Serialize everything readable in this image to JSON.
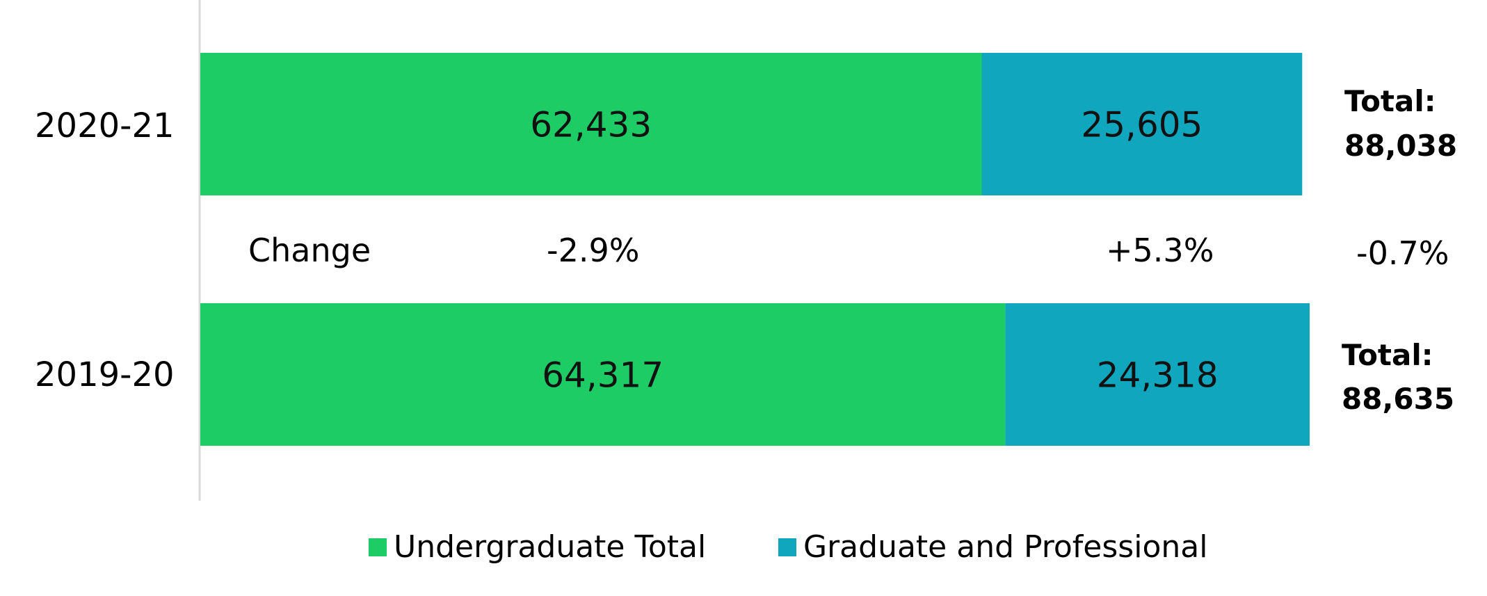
{
  "chart_data": {
    "type": "bar",
    "orientation": "horizontal",
    "stacked": true,
    "categories": [
      "2020-21",
      "2019-20"
    ],
    "series": [
      {
        "name": "Undergraduate Total",
        "color": "#1ecc66",
        "values": [
          62433,
          64317
        ],
        "labels": [
          "62,433",
          "64,317"
        ]
      },
      {
        "name": "Graduate and Professional",
        "color": "#10a7be",
        "values": [
          25605,
          24318
        ],
        "labels": [
          "25,605",
          "24,318"
        ]
      }
    ],
    "totals": [
      {
        "label": "Total:",
        "value": "88,038"
      },
      {
        "label": "Total:",
        "value": "88,635"
      }
    ],
    "change": {
      "label": "Change",
      "undergraduate": "-2.9%",
      "graduate": "+5.3%",
      "total": "-0.7%"
    },
    "legend": {
      "position": "bottom"
    },
    "grid": false
  }
}
